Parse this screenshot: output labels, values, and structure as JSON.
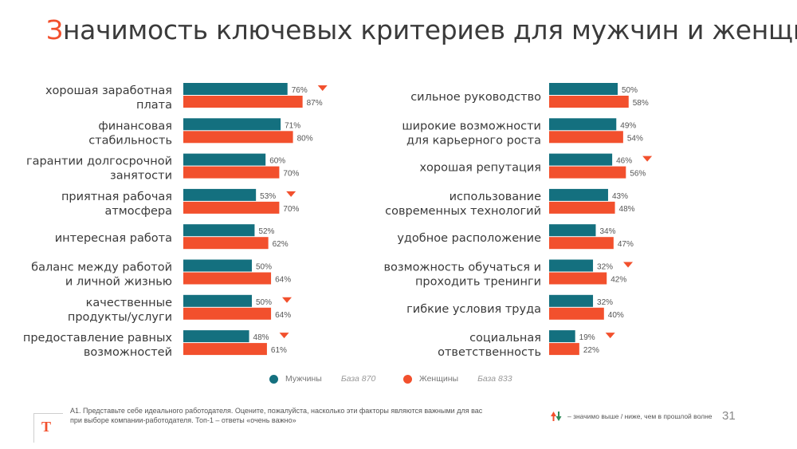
{
  "title_first": "З",
  "title_rest": "начимость ключевых критериев для мужчин и женщин",
  "colors": {
    "men": "#14707f",
    "women": "#f2502d",
    "marker": "#f2502d"
  },
  "legend": {
    "men_label": "Мужчины",
    "men_base": "База 870",
    "women_label": "Женщины",
    "women_base": "База 833"
  },
  "footnote": "А1. Представьте себе идеального работодателя. Оцените, пожалуйста, насколько эти факторы являются важными для вас при выборе компании-работодателя. Топ-1 – ответы «очень важно»",
  "significance_note": "– значимо выше / ниже, чем в прошлой волне",
  "logo_letter": "Т",
  "page_number": "31",
  "chart_data": [
    {
      "type": "bar",
      "orientation": "horizontal",
      "series_names": [
        "Мужчины",
        "Женщины"
      ],
      "categories": [
        {
          "label": [
            "хорошая заработная",
            "плата"
          ],
          "men": 76,
          "women": 87,
          "down_marker": true
        },
        {
          "label": [
            "финансовая",
            "стабильность"
          ],
          "men": 71,
          "women": 80,
          "down_marker": false
        },
        {
          "label": [
            "гарантии долгосрочной",
            "занятости"
          ],
          "men": 60,
          "women": 70,
          "down_marker": false
        },
        {
          "label": [
            "приятная рабочая",
            "атмосфера"
          ],
          "men": 53,
          "women": 70,
          "down_marker": true
        },
        {
          "label": [
            "интересная работа"
          ],
          "men": 52,
          "women": 62,
          "down_marker": false
        },
        {
          "label": [
            "баланс между работой",
            "и личной жизнью"
          ],
          "men": 50,
          "women": 64,
          "down_marker": false
        },
        {
          "label": [
            "качественные",
            "продукты/услуги"
          ],
          "men": 50,
          "women": 64,
          "down_marker": true
        },
        {
          "label": [
            "предоставление равных",
            "возможностей"
          ],
          "men": 48,
          "women": 61,
          "down_marker": true
        }
      ]
    },
    {
      "type": "bar",
      "orientation": "horizontal",
      "series_names": [
        "Мужчины",
        "Женщины"
      ],
      "categories": [
        {
          "label": [
            "сильное руководство"
          ],
          "men": 50,
          "women": 58,
          "down_marker": false
        },
        {
          "label": [
            "широкие возможности",
            "для карьерного роста"
          ],
          "men": 49,
          "women": 54,
          "down_marker": false
        },
        {
          "label": [
            "хорошая репутация"
          ],
          "men": 46,
          "women": 56,
          "down_marker": true
        },
        {
          "label": [
            "использование",
            "современных технологий"
          ],
          "men": 43,
          "women": 48,
          "down_marker": false
        },
        {
          "label": [
            "удобное расположение"
          ],
          "men": 34,
          "women": 47,
          "down_marker": false
        },
        {
          "label": [
            "возможность обучаться и",
            "проходить тренинги"
          ],
          "men": 32,
          "women": 42,
          "down_marker": true
        },
        {
          "label": [
            "гибкие условия труда"
          ],
          "men": 32,
          "women": 40,
          "down_marker": false
        },
        {
          "label": [
            "социальная",
            "ответственность"
          ],
          "men": 19,
          "women": 22,
          "down_marker": true
        }
      ]
    }
  ]
}
